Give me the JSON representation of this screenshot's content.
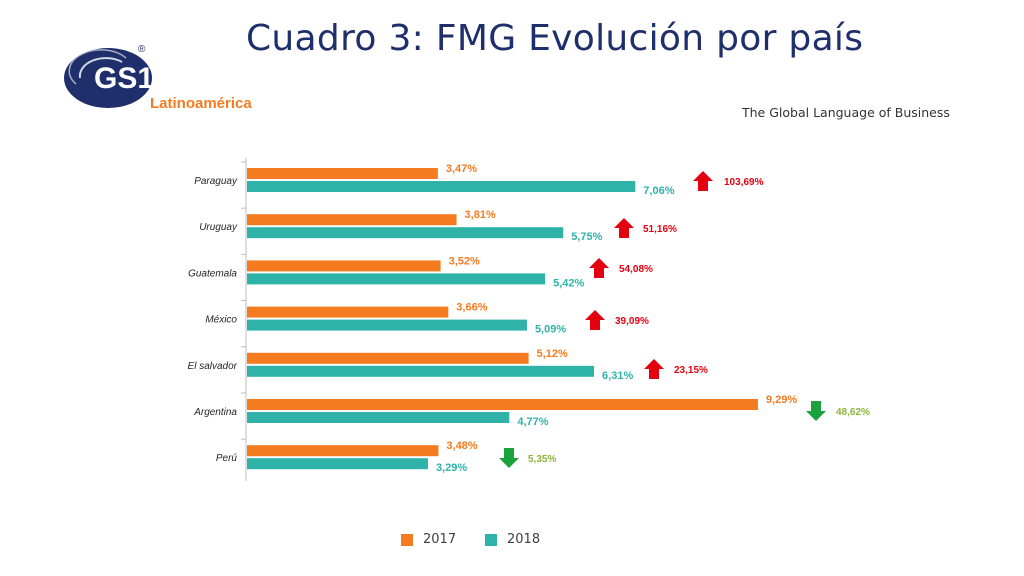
{
  "title": "Cuadro 3: FMG Evolución por país",
  "logo": {
    "mark": "GS1",
    "region": "Latinoamérica",
    "registered": "®"
  },
  "tagline": "The Global Language of Business",
  "colors": {
    "s2017": "#f47b20",
    "s2018": "#2fb3a9",
    "up": "#e3000f",
    "down": "#1aa23c",
    "up_text": "#e3000f",
    "down_text": "#8cb43c"
  },
  "chart_data": {
    "type": "bar",
    "orientation": "horizontal",
    "categories": [
      "Paraguay",
      "Uruguay",
      "Guatemala",
      "México",
      "El salvador",
      "Argentina",
      "Perú"
    ],
    "series": [
      {
        "name": "2017",
        "values": [
          3.47,
          3.81,
          3.52,
          3.66,
          5.12,
          9.29,
          3.48
        ],
        "labels": [
          "3,47%",
          "3,81%",
          "3,52%",
          "3,66%",
          "5,12%",
          "9,29%",
          "3,48%"
        ]
      },
      {
        "name": "2018",
        "values": [
          7.06,
          5.75,
          5.42,
          5.09,
          6.31,
          4.77,
          3.29
        ],
        "labels": [
          "7,06%",
          "5,75%",
          "5,42%",
          "5,09%",
          "6,31%",
          "4,77%",
          "3,29%"
        ]
      }
    ],
    "changes": [
      {
        "direction": "up",
        "label": "103,69%"
      },
      {
        "direction": "up",
        "label": "51,16%"
      },
      {
        "direction": "up",
        "label": "54,08%"
      },
      {
        "direction": "up",
        "label": "39,09%"
      },
      {
        "direction": "up",
        "label": "23,15%"
      },
      {
        "direction": "down",
        "label": "48,62%"
      },
      {
        "direction": "down",
        "label": "5,35%"
      }
    ],
    "xlim": [
      0,
      10
    ],
    "grid": false,
    "legend": "bottom",
    "title": "",
    "xlabel": "",
    "ylabel": ""
  }
}
